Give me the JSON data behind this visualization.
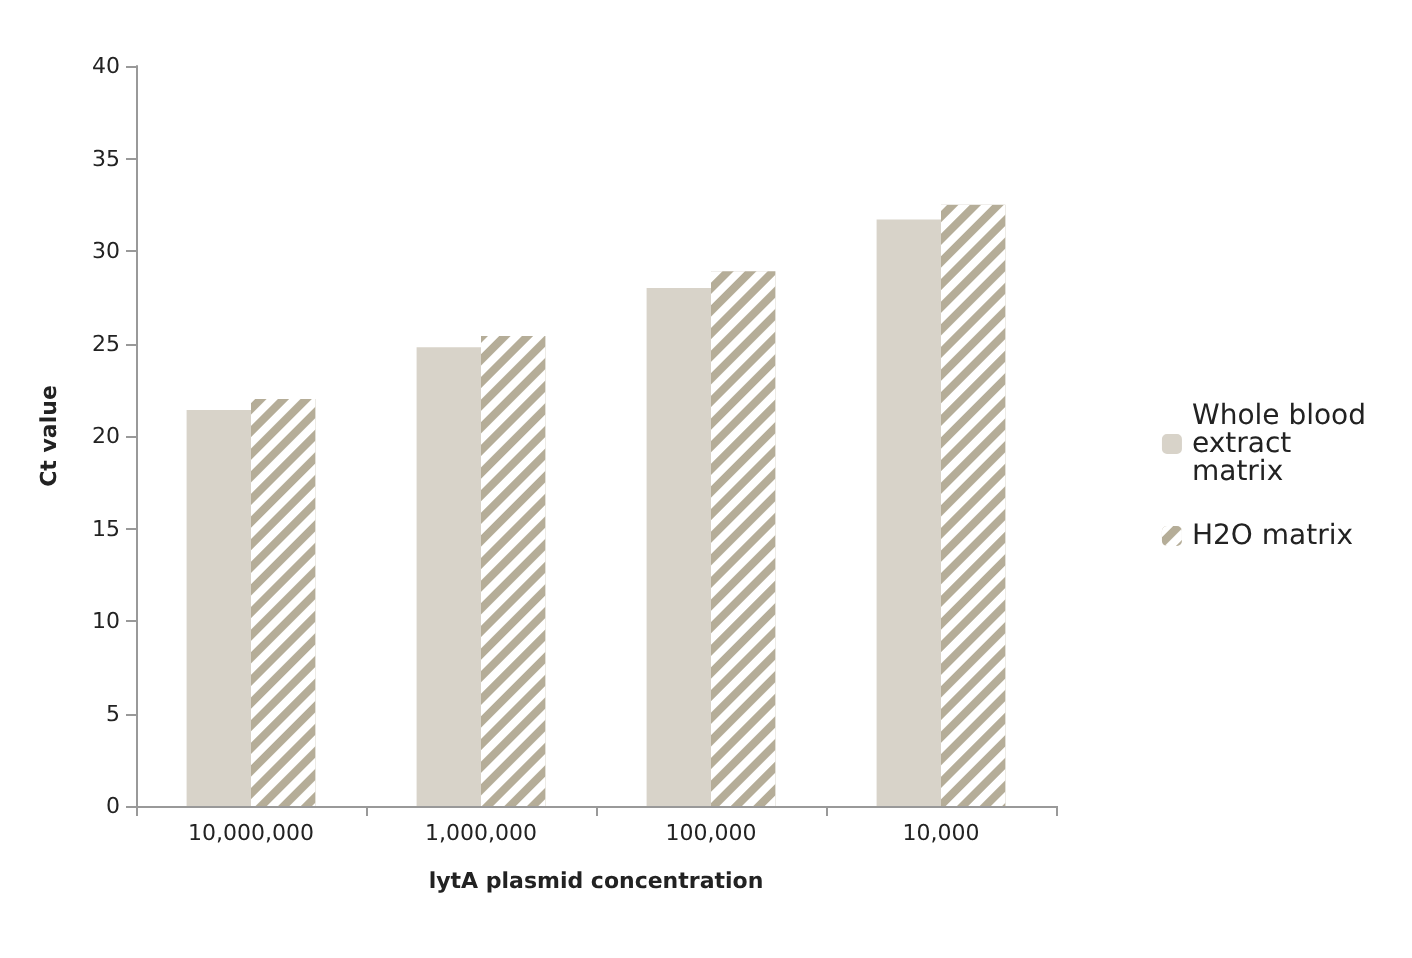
{
  "chart_data": {
    "type": "bar",
    "xlabel": "lytA plasmid concentration",
    "ylabel": "Ct value",
    "categories": [
      "10,000,000",
      "1,000,000",
      "100,000",
      "10,000"
    ],
    "series": [
      {
        "name": "Whole blood\nextract\nmatrix",
        "color": "#d8d3c9",
        "values": [
          21.4,
          24.8,
          28.0,
          31.7
        ]
      },
      {
        "name": "H2O matrix",
        "color": "#b5ad98",
        "values": [
          22.0,
          25.4,
          28.9,
          32.5
        ]
      }
    ],
    "ylim": [
      0,
      40
    ],
    "yticks": [
      0,
      5,
      10,
      15,
      20,
      25,
      30,
      35,
      40
    ],
    "grid": false,
    "legend": "right"
  }
}
